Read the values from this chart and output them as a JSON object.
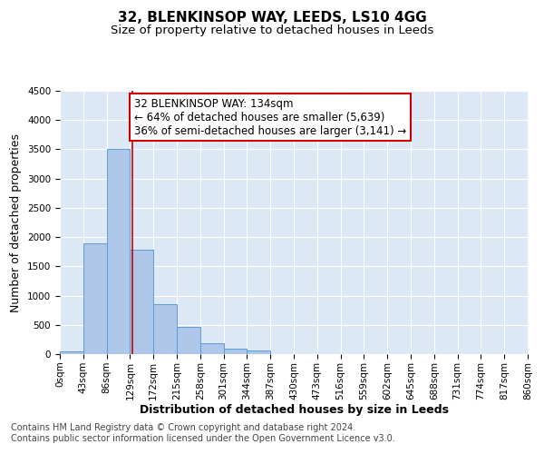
{
  "title": "32, BLENKINSOP WAY, LEEDS, LS10 4GG",
  "subtitle": "Size of property relative to detached houses in Leeds",
  "xlabel": "Distribution of detached houses by size in Leeds",
  "ylabel": "Number of detached properties",
  "annotation_title": "32 BLENKINSOP WAY: 134sqm",
  "annotation_line1": "← 64% of detached houses are smaller (5,639)",
  "annotation_line2": "36% of semi-detached houses are larger (3,141) →",
  "bin_labels": [
    "0sqm",
    "43sqm",
    "86sqm",
    "129sqm",
    "172sqm",
    "215sqm",
    "258sqm",
    "301sqm",
    "344sqm",
    "387sqm",
    "430sqm",
    "473sqm",
    "516sqm",
    "559sqm",
    "602sqm",
    "645sqm",
    "688sqm",
    "731sqm",
    "774sqm",
    "817sqm",
    "860sqm"
  ],
  "bar_values": [
    50,
    1900,
    3500,
    1780,
    860,
    460,
    190,
    100,
    60,
    0,
    0,
    0,
    0,
    0,
    0,
    0,
    0,
    0,
    0,
    0
  ],
  "bar_color": "#aec6e8",
  "bar_edge_color": "#5b9bd5",
  "ylim": [
    0,
    4500
  ],
  "yticks": [
    0,
    500,
    1000,
    1500,
    2000,
    2500,
    3000,
    3500,
    4000,
    4500
  ],
  "property_line_x": 134,
  "bin_width": 43,
  "annotation_box_color": "#ffffff",
  "annotation_box_edgecolor": "#cc0000",
  "property_line_color": "#cc0000",
  "background_color": "#dce8f5",
  "footer_text": "Contains HM Land Registry data © Crown copyright and database right 2024.\nContains public sector information licensed under the Open Government Licence v3.0.",
  "title_fontsize": 11,
  "subtitle_fontsize": 9.5,
  "axis_label_fontsize": 9,
  "tick_fontsize": 7.5,
  "annotation_fontsize": 8.5,
  "footer_fontsize": 7
}
